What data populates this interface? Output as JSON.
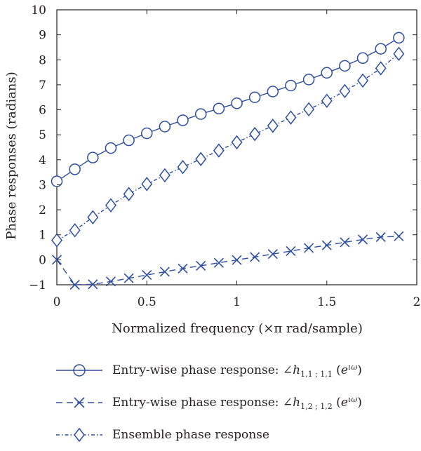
{
  "chart_data": {
    "type": "line",
    "xlabel": "Normalized frequency (×π rad/sample)",
    "ylabel": "Phase responses (radians)",
    "xlim": [
      0,
      2
    ],
    "ylim": [
      -1,
      10
    ],
    "xticks": [
      "0",
      "0.5",
      "1",
      "1.5",
      "2"
    ],
    "yticks": [
      "−1",
      "0",
      "1",
      "2",
      "3",
      "4",
      "5",
      "6",
      "7",
      "8",
      "9",
      "10"
    ],
    "x": [
      0,
      0.1,
      0.2,
      0.3,
      0.4,
      0.5,
      0.6,
      0.7,
      0.8,
      0.9,
      1.0,
      1.1,
      1.2,
      1.3,
      1.4,
      1.5,
      1.6,
      1.7,
      1.8,
      1.9
    ],
    "series": [
      {
        "name": "Entry-wise phase response: ∠h1,1 ; 1,1 (eiω)",
        "name_prefix": "Entry-wise phase response: ∠",
        "name_var": "h",
        "name_sub": "1,1 ; 1,1",
        "name_arg_base": "e",
        "name_arg_sup": "ιω",
        "marker": "circle",
        "line_style": "solid",
        "color": "#2e4ea2",
        "values": [
          3.14,
          3.62,
          4.09,
          4.47,
          4.78,
          5.06,
          5.33,
          5.58,
          5.83,
          6.05,
          6.26,
          6.5,
          6.73,
          6.97,
          7.21,
          7.48,
          7.76,
          8.07,
          8.44,
          8.88
        ]
      },
      {
        "name": "Entry-wise phase response: ∠h1,2 ; 1,2 (eiω)",
        "name_prefix": "Entry-wise phase response: ∠",
        "name_var": "h",
        "name_sub": "1,2 ; 1,2",
        "name_arg_base": "e",
        "name_arg_sup": "ιω",
        "marker": "x",
        "line_style": "dashed",
        "color": "#2e4ea2",
        "values": [
          0.0,
          -1.0,
          -0.98,
          -0.87,
          -0.74,
          -0.61,
          -0.48,
          -0.35,
          -0.24,
          -0.12,
          -0.01,
          0.11,
          0.23,
          0.35,
          0.47,
          0.58,
          0.7,
          0.81,
          0.91,
          0.94
        ]
      },
      {
        "name": "Ensemble phase response",
        "marker": "diamond",
        "line_style": "dashdot",
        "color": "#2e4ea2",
        "values": [
          0.78,
          1.18,
          1.7,
          2.18,
          2.63,
          3.03,
          3.38,
          3.71,
          4.03,
          4.37,
          4.7,
          5.03,
          5.36,
          5.69,
          6.02,
          6.36,
          6.75,
          7.17,
          7.66,
          8.24
        ]
      }
    ]
  }
}
